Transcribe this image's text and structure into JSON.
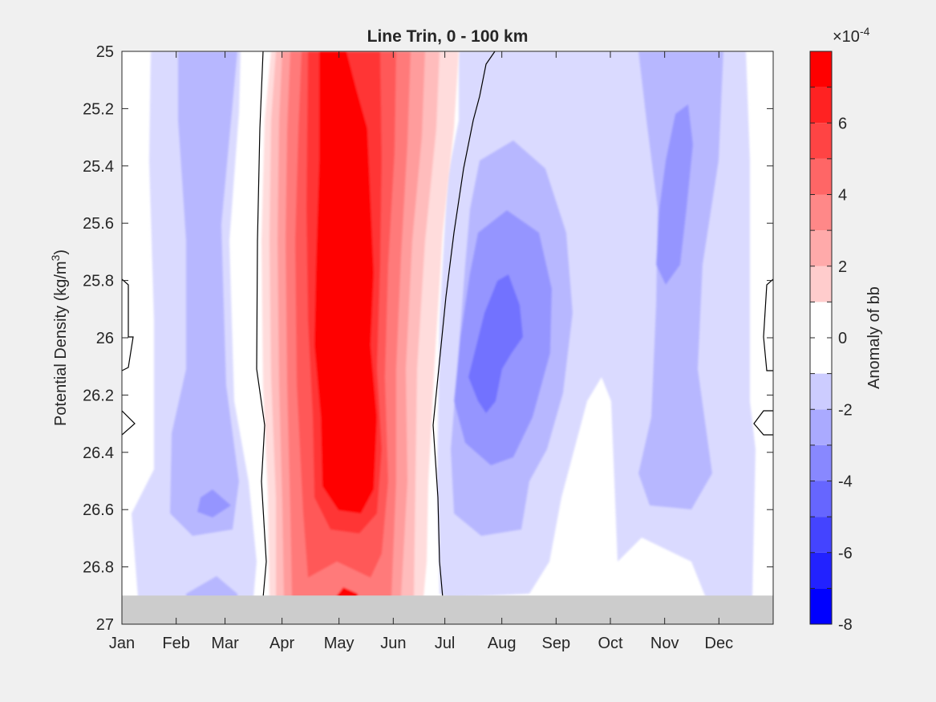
{
  "chart_data": {
    "type": "heatmap",
    "subtype": "filled-contour",
    "title": "Line Trin, 0 - 100 km",
    "xlabel": "",
    "ylabel": "Potential Density (kg/m",
    "ylabel_sup": "3",
    "ylabel_end": ")",
    "x_ticks": [
      "Jan",
      "Feb",
      "Mar",
      "Apr",
      "May",
      "Jun",
      "Jul",
      "Aug",
      "Sep",
      "Oct",
      "Nov",
      "Dec"
    ],
    "xlim": [
      0,
      12
    ],
    "y_ticks": [
      "25",
      "25.2",
      "25.4",
      "25.6",
      "25.8",
      "26",
      "26.2",
      "26.4",
      "26.6",
      "26.8",
      "27"
    ],
    "ylim": [
      25,
      27
    ],
    "y_reversed": true,
    "no_data_below_density": 26.9,
    "no_data_color": "#cccccc",
    "zero_contour_color": "#000000",
    "colorbar": {
      "label": "Anomaly of bb",
      "exponent_prefix": "×10",
      "exponent": "-4",
      "limits": [
        -8,
        8
      ],
      "levels": 16,
      "tick_labels": [
        "-8",
        "-6",
        "-4",
        "-2",
        "0",
        "2",
        "4",
        "6"
      ],
      "colors": [
        "#0000ff",
        "#2222ff",
        "#4444ff",
        "#6666ff",
        "#8888ff",
        "#aaaaff",
        "#ccccff",
        "#ffffff",
        "#ffffff",
        "#ffcccc",
        "#ffaaaa",
        "#ff8888",
        "#ff6666",
        "#ff4444",
        "#ff2222",
        "#ff0000"
      ]
    },
    "approximate_anomaly_features": [
      {
        "month": 4.5,
        "density": 26.0,
        "value": 7,
        "sign": "positive",
        "note": "strong positive band Apr-Jun across all densities"
      },
      {
        "month": 7.9,
        "density": 26.0,
        "value": -3.5,
        "sign": "negative",
        "note": "negative core late Jul-Aug near 26.0"
      },
      {
        "month": 10.0,
        "density": 25.6,
        "value": -2.5,
        "sign": "negative",
        "note": "negative band in Nov"
      },
      {
        "month": 1.8,
        "density": 26.55,
        "value": -2.5,
        "sign": "negative",
        "note": "weak negative patch in Feb near 26.6"
      }
    ]
  }
}
